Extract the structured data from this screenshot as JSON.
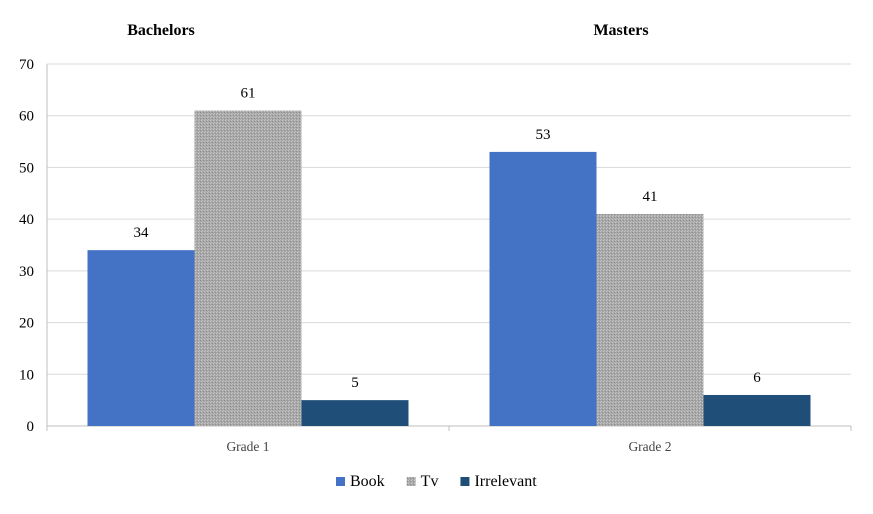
{
  "chart_data": {
    "type": "bar",
    "categories": [
      "Grade 1",
      "Grade 2"
    ],
    "group_titles": [
      "Bachelors",
      "Masters"
    ],
    "series": [
      {
        "name": "Book",
        "values": [
          34,
          53
        ],
        "color": "#4472C4"
      },
      {
        "name": "Tv",
        "values": [
          61,
          41
        ],
        "color": "#A6A6A6",
        "hatched": true
      },
      {
        "name": "Irrelevant",
        "values": [
          5,
          6
        ],
        "color": "#1F4E79"
      }
    ],
    "ylim": [
      0,
      70
    ],
    "yticks": [
      0,
      10,
      20,
      30,
      40,
      50,
      60,
      70
    ],
    "grid": true,
    "legend_position": "bottom",
    "data_labels": true
  }
}
